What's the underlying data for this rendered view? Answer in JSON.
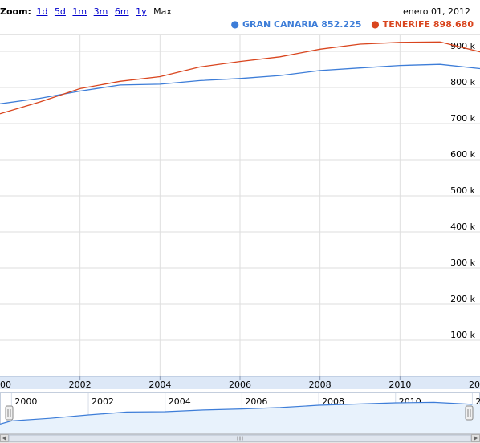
{
  "zoom": {
    "label": "Zoom:",
    "options": [
      "1d",
      "5d",
      "1m",
      "3m",
      "6m",
      "1y"
    ],
    "current": "Max"
  },
  "date_readout": "enero 01, 2012",
  "legend": [
    {
      "name": "GRAN CANARIA",
      "value": "852.225",
      "color": "#3d7dd8"
    },
    {
      "name": "TENERIFE",
      "value": "898.680",
      "color": "#d9451e"
    }
  ],
  "chart_data": {
    "type": "line",
    "x": [
      2000,
      2001,
      2002,
      2003,
      2004,
      2005,
      2006,
      2007,
      2008,
      2009,
      2010,
      2011,
      2012
    ],
    "series": [
      {
        "name": "GRAN CANARIA",
        "color": "#3d7dd8",
        "values": [
          755000,
          770000,
          790000,
          807000,
          809000,
          819000,
          825000,
          833000,
          847000,
          854000,
          861000,
          864000,
          852225
        ]
      },
      {
        "name": "TENERIFE",
        "color": "#d9451e",
        "values": [
          727000,
          760000,
          797000,
          817000,
          830000,
          857000,
          872000,
          885000,
          906000,
          920000,
          925000,
          926000,
          898680
        ]
      }
    ],
    "xlim": [
      2000,
      2012
    ],
    "ylim": [
      0,
      900000
    ],
    "y_ticks": [
      "100 k",
      "200 k",
      "300 k",
      "400 k",
      "500 k",
      "600 k",
      "700 k",
      "800 k",
      "900 k"
    ],
    "x_ticks": [
      "2002",
      "2004",
      "2006",
      "2008",
      "2010"
    ],
    "x_ticks_clipped": [
      "00",
      "20"
    ],
    "navigator_ticks": [
      "2000",
      "2002",
      "2004",
      "2006",
      "2008",
      "2010",
      "20"
    ],
    "grid": true,
    "legend_position": "top-right"
  }
}
